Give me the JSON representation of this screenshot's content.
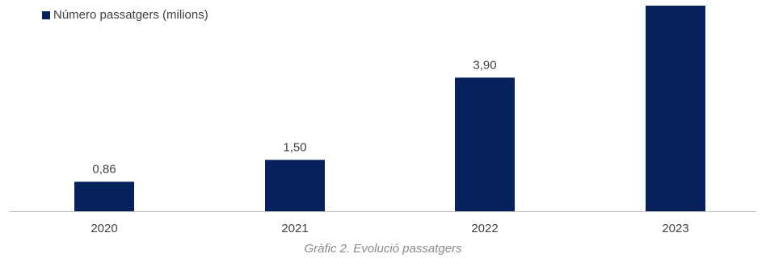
{
  "caption": "Gràfic 2. Evolució passatgers",
  "colors": {
    "bar": "#06215b",
    "axis": "#bfbfbf",
    "text": "#404040",
    "caption": "#8a8a8a"
  },
  "chart_data": {
    "type": "bar",
    "categories": [
      "2020",
      "2021",
      "2022",
      "2023"
    ],
    "series": [
      {
        "name": "Número passatgers (milions)",
        "values": [
          0.86,
          1.5,
          3.9,
          6.0
        ],
        "labels": [
          "0,86",
          "1,50",
          "3,90",
          ""
        ]
      }
    ],
    "title": "",
    "xlabel": "",
    "ylabel": "",
    "ylim": [
      0,
      6.1
    ],
    "grid": false,
    "legend": "top-left"
  }
}
